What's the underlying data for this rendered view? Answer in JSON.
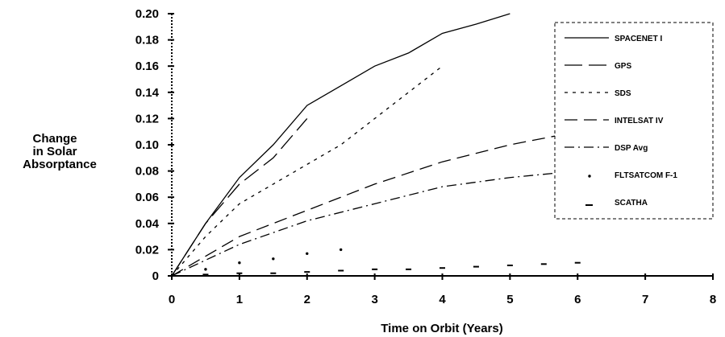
{
  "chart_data": {
    "type": "line",
    "xlabel": "Time on Orbit (Years)",
    "ylabel_lines": [
      "Change",
      "in Solar",
      "Absorptance"
    ],
    "xlim": [
      0,
      8
    ],
    "ylim": [
      0,
      0.2
    ],
    "x_ticks": [
      "0",
      "1",
      "2",
      "3",
      "4",
      "5",
      "6",
      "7",
      "8"
    ],
    "y_ticks": [
      "0.20",
      "0.18",
      "0.16",
      "0.14",
      "0.12",
      "0.10",
      "0.08",
      "0.06",
      "0.04",
      "0.02",
      "0"
    ],
    "grid": false,
    "legend_position": "top-right",
    "series": [
      {
        "name": "SPACENET I",
        "style": "solid",
        "x": [
          0,
          0.5,
          1,
          1.5,
          2,
          2.5,
          3,
          3.5,
          4,
          4.5,
          5
        ],
        "y": [
          0,
          0.04,
          0.075,
          0.1,
          0.13,
          0.145,
          0.16,
          0.17,
          0.185,
          0.192,
          0.2
        ]
      },
      {
        "name": "GPS",
        "style": "longdash",
        "x": [
          0,
          0.5,
          1,
          1.5,
          2
        ],
        "y": [
          0,
          0.04,
          0.07,
          0.09,
          0.12
        ]
      },
      {
        "name": "SDS",
        "style": "shortdash",
        "x": [
          0,
          0.5,
          1,
          1.5,
          2,
          2.5,
          3,
          3.5,
          4
        ],
        "y": [
          0,
          0.03,
          0.055,
          0.07,
          0.085,
          0.1,
          0.12,
          0.14,
          0.16
        ]
      },
      {
        "name": "INTELSAT IV",
        "style": "dash",
        "x": [
          0,
          1,
          2,
          3,
          4,
          5,
          6
        ],
        "y": [
          0,
          0.03,
          0.05,
          0.07,
          0.087,
          0.1,
          0.11
        ]
      },
      {
        "name": "DSP Avg",
        "style": "dashdot",
        "x": [
          0,
          1,
          2,
          3,
          4,
          5,
          6
        ],
        "y": [
          0,
          0.024,
          0.042,
          0.055,
          0.068,
          0.075,
          0.08
        ]
      },
      {
        "name": "FLTSATCOM F-1",
        "style": "dots",
        "x": [
          0.5,
          1,
          1.5,
          2,
          2.5
        ],
        "y": [
          0.005,
          0.01,
          0.013,
          0.017,
          0.02
        ]
      },
      {
        "name": "SCATHA",
        "style": "dashes",
        "x": [
          0,
          0.5,
          1,
          1.5,
          2,
          2.5,
          3,
          3.5,
          4,
          4.5,
          5,
          5.5,
          6
        ],
        "y": [
          0,
          0.001,
          0.002,
          0.002,
          0.003,
          0.004,
          0.005,
          0.005,
          0.006,
          0.007,
          0.008,
          0.009,
          0.01
        ]
      }
    ]
  }
}
